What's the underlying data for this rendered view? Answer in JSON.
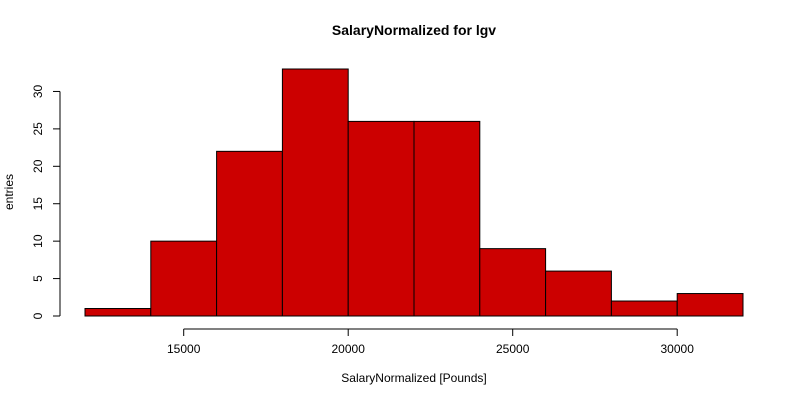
{
  "chart_data": {
    "type": "bar",
    "histogram": true,
    "title": "SalaryNormalized for lgv",
    "xlabel": "SalaryNormalized [Pounds]",
    "ylabel": "entries",
    "bins": [
      {
        "start": 12000,
        "end": 14000,
        "count": 1
      },
      {
        "start": 14000,
        "end": 16000,
        "count": 10
      },
      {
        "start": 16000,
        "end": 18000,
        "count": 22
      },
      {
        "start": 18000,
        "end": 20000,
        "count": 33
      },
      {
        "start": 20000,
        "end": 22000,
        "count": 26
      },
      {
        "start": 22000,
        "end": 24000,
        "count": 26
      },
      {
        "start": 24000,
        "end": 26000,
        "count": 9
      },
      {
        "start": 26000,
        "end": 28000,
        "count": 6
      },
      {
        "start": 28000,
        "end": 30000,
        "count": 2
      },
      {
        "start": 30000,
        "end": 32000,
        "count": 3
      }
    ],
    "xticks": [
      15000,
      20000,
      25000,
      30000
    ],
    "xtick_labels": [
      "15000",
      "20000",
      "25000",
      "30000"
    ],
    "yticks": [
      0,
      5,
      10,
      15,
      20,
      25,
      30
    ],
    "ytick_labels": [
      "0",
      "5",
      "10",
      "15",
      "20",
      "25",
      "30"
    ],
    "xlim": [
      12000,
      32000
    ],
    "ylim": [
      0,
      33
    ],
    "grid": false,
    "bar_color": "#cc0000",
    "edge_color": "#000000"
  }
}
